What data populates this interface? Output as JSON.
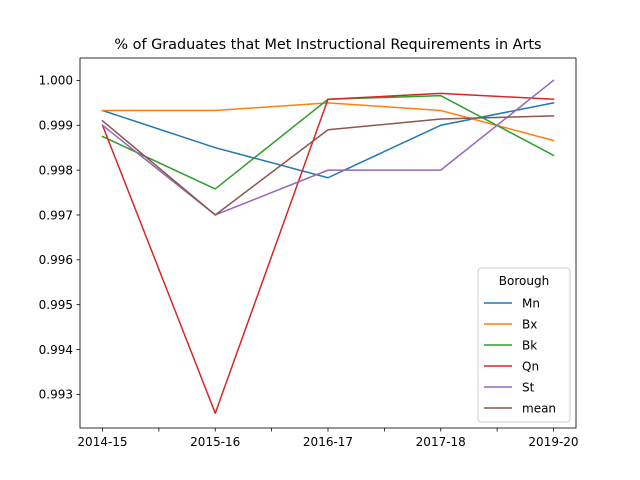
{
  "chart_data": {
    "type": "line",
    "title": "% of Graduates that Met Instructional Requirements in Arts",
    "xlabel": "",
    "ylabel": "",
    "categories": [
      "2014-15",
      "2015-16",
      "2016-17",
      "2017-18",
      "2019-20"
    ],
    "ylim": [
      0.99225,
      1.0005
    ],
    "yticks": [
      0.993,
      0.994,
      0.995,
      0.996,
      0.997,
      0.998,
      0.999,
      1.0
    ],
    "ytick_labels": [
      "0.993",
      "0.994",
      "0.995",
      "0.996",
      "0.997",
      "0.998",
      "0.999",
      "1.000"
    ],
    "grid": false,
    "legend": {
      "title": "Borough",
      "placement": "lower-right"
    },
    "series": [
      {
        "name": "Mn",
        "color": "#1f77b4",
        "values": [
          0.99933,
          0.9985,
          0.99783,
          0.999,
          0.9995
        ]
      },
      {
        "name": "Bx",
        "color": "#ff7f0e",
        "values": [
          0.99933,
          0.99933,
          0.9995,
          0.99933,
          0.99866
        ]
      },
      {
        "name": "Bk",
        "color": "#2ca02c",
        "values": [
          0.99875,
          0.99758,
          0.99958,
          0.99966,
          0.99833
        ]
      },
      {
        "name": "Qn",
        "color": "#d62728",
        "values": [
          0.999,
          0.99258,
          0.99958,
          0.99971,
          0.99958
        ]
      },
      {
        "name": "St",
        "color": "#9467bd",
        "values": [
          0.999,
          0.997,
          0.998,
          0.998,
          1.0
        ]
      },
      {
        "name": "mean",
        "color": "#8c564b",
        "values": [
          0.9991,
          0.997,
          0.9989,
          0.99914,
          0.99921
        ]
      }
    ]
  }
}
